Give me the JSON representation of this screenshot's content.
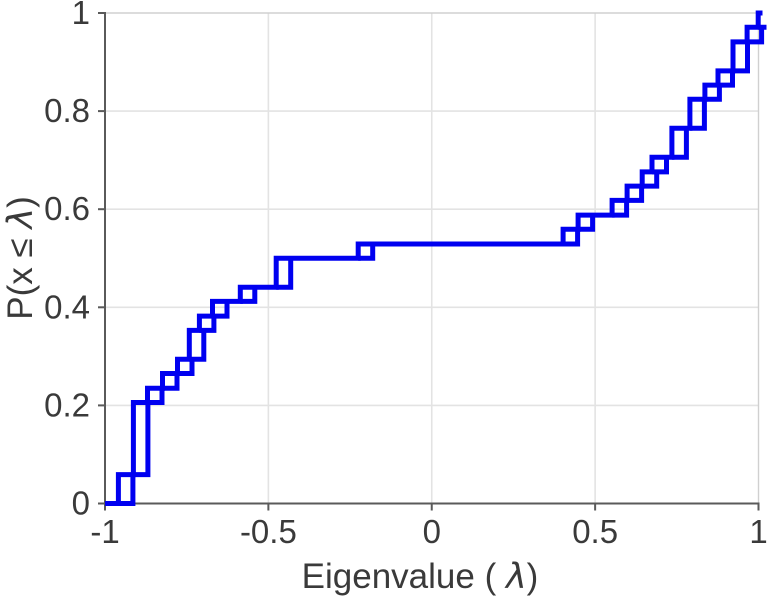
{
  "chart_data": {
    "type": "line",
    "subtype": "ecdf-staircase",
    "title": "",
    "xlabel": "Eigenvalue (  λ)",
    "ylabel": "P(x ≤ λ)",
    "xlim": [
      -1,
      1
    ],
    "ylim": [
      0,
      1
    ],
    "grid": true,
    "legend": "none",
    "n_samples": 34,
    "x_ticks": {
      "values": [
        -1,
        -0.5,
        0,
        0.5,
        1
      ],
      "labels": [
        "-1",
        "-0.5",
        "0",
        "0.5",
        "1"
      ]
    },
    "y_ticks": {
      "values": [
        0,
        0.2,
        0.4,
        0.6,
        0.8,
        1
      ],
      "labels": [
        "0",
        "0.2",
        "0.4",
        "0.6",
        "0.8",
        "1"
      ]
    },
    "colors": {
      "line": "#0000F0",
      "grid": "#E3E3E3",
      "axis": "#5A5A5A",
      "box": "#D0D0D0",
      "text": "#3A3A3A",
      "background": "#FFFFFF"
    },
    "steps": [
      {
        "lambda": -0.959,
        "count": 2,
        "F": 0.059
      },
      {
        "lambda": -0.913,
        "count": 5,
        "F": 0.206
      },
      {
        "lambda": -0.87,
        "count": 1,
        "F": 0.235
      },
      {
        "lambda": -0.824,
        "count": 1,
        "F": 0.265
      },
      {
        "lambda": -0.778,
        "count": 1,
        "F": 0.294
      },
      {
        "lambda": -0.742,
        "count": 2,
        "F": 0.353
      },
      {
        "lambda": -0.711,
        "count": 1,
        "F": 0.382
      },
      {
        "lambda": -0.671,
        "count": 1,
        "F": 0.412
      },
      {
        "lambda": -0.586,
        "count": 1,
        "F": 0.441
      },
      {
        "lambda": -0.476,
        "count": 2,
        "F": 0.5
      },
      {
        "lambda": -0.225,
        "count": 1,
        "F": 0.529
      },
      {
        "lambda": 0.402,
        "count": 1,
        "F": 0.559
      },
      {
        "lambda": 0.448,
        "count": 1,
        "F": 0.588
      },
      {
        "lambda": 0.552,
        "count": 1,
        "F": 0.618
      },
      {
        "lambda": 0.598,
        "count": 1,
        "F": 0.647
      },
      {
        "lambda": 0.644,
        "count": 1,
        "F": 0.676
      },
      {
        "lambda": 0.674,
        "count": 1,
        "F": 0.706
      },
      {
        "lambda": 0.735,
        "count": 2,
        "F": 0.765
      },
      {
        "lambda": 0.79,
        "count": 2,
        "F": 0.824
      },
      {
        "lambda": 0.836,
        "count": 1,
        "F": 0.853
      },
      {
        "lambda": 0.876,
        "count": 1,
        "F": 0.882
      },
      {
        "lambda": 0.922,
        "count": 2,
        "F": 0.941
      },
      {
        "lambda": 0.965,
        "count": 1,
        "F": 0.971
      },
      {
        "lambda": 0.999,
        "count": 1,
        "F": 1.0
      }
    ]
  }
}
